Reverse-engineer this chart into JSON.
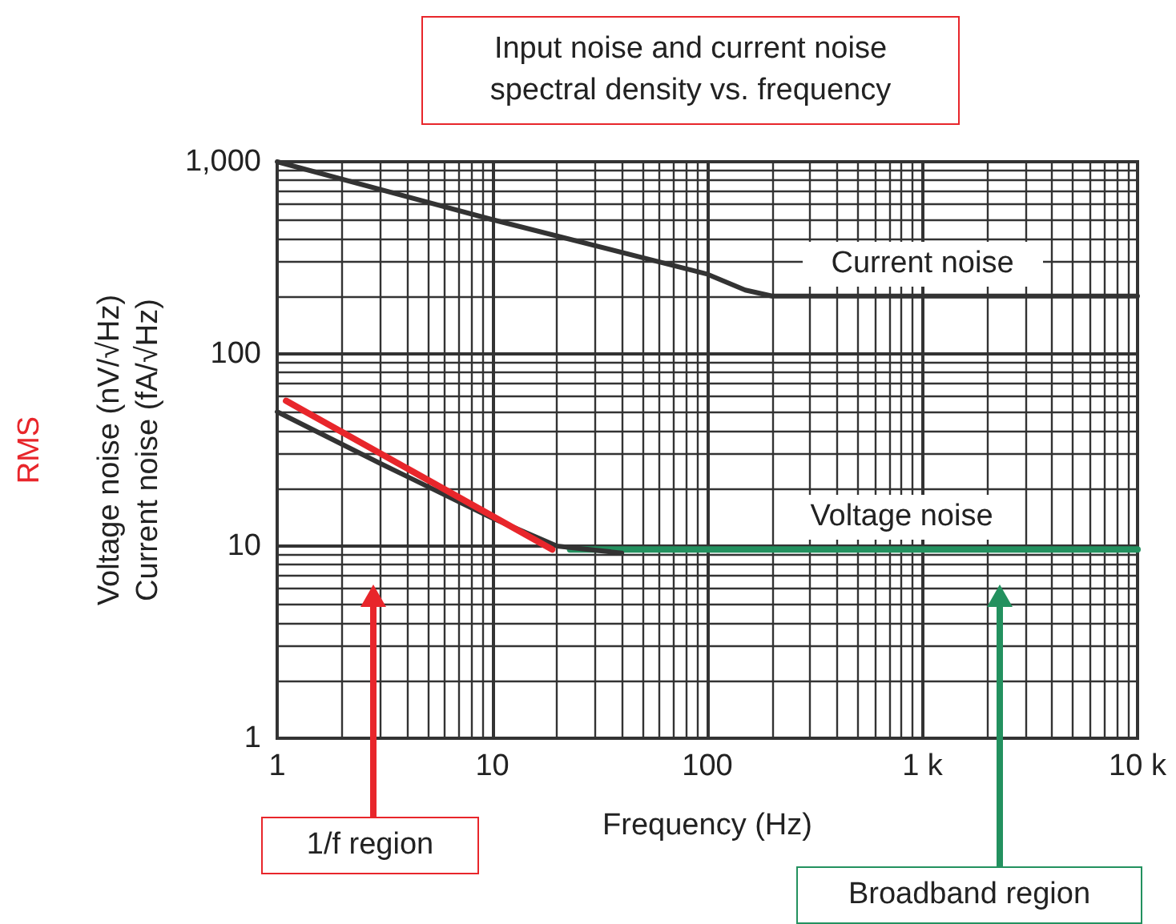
{
  "chart_data": {
    "type": "line",
    "title": "Input noise and current noise\nspectral density vs. frequency",
    "xlabel": "Frequency (Hz)",
    "ylabel": "Voltage noise (nV/√Hz)\nCurrent noise (fA/√Hz)",
    "annotations": [
      "RMS",
      "1/f region",
      "Broadband region"
    ],
    "log": "xy",
    "grid": true,
    "legend": false,
    "marker": "none",
    "line_style": "solid",
    "xlim": [
      1,
      10000
    ],
    "ylim": [
      1,
      1000
    ],
    "xticks": [
      1,
      10,
      100,
      {
        "value": 1000,
        "label": "1 k"
      },
      {
        "value": 10000,
        "label": "10 k"
      }
    ],
    "yticks": [
      1,
      10,
      100,
      {
        "value": 1000,
        "label": "1,000"
      }
    ],
    "series": [
      {
        "name": "Current noise",
        "color": "#333333",
        "x": [
          1,
          10,
          100,
          150,
          200,
          10000
        ],
        "values": [
          1000,
          500,
          260,
          215,
          200,
          200
        ]
      },
      {
        "color": "#333333",
        "x": [
          1,
          3,
          10,
          20,
          40
        ],
        "values": [
          50,
          27,
          14,
          10,
          9.2
        ]
      },
      {
        "color": "#e8262b",
        "x": [
          1.1,
          19
        ],
        "values": [
          57,
          9.6
        ]
      },
      {
        "name": "Voltage noise",
        "color": "#23915f",
        "x": [
          23,
          10000
        ],
        "values": [
          9.6,
          9.6
        ]
      }
    ]
  }
}
